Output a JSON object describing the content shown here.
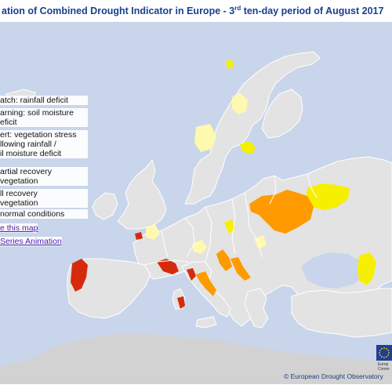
{
  "title": {
    "text_before_sup": "ation of Combined Drought Indicator in Europe - 3",
    "sup": "rd",
    "text_after_sup": " ten-day period of August 2017"
  },
  "legend": {
    "items": [
      {
        "line1": "atch: rainfall deficit",
        "line2": "",
        "line3": ""
      },
      {
        "line1": "arning: soil moisture",
        "line2": "eficit",
        "line3": ""
      },
      {
        "line1": "ert: vegetation stress",
        "line2": "llowing rainfall /",
        "line3": "il moisture deficit"
      },
      {
        "line1": "artial recovery",
        "line2": "vegetation",
        "line3": ""
      },
      {
        "line1": "ll recovery",
        "line2": "vegetation",
        "line3": ""
      },
      {
        "line1": "normal conditions",
        "line2": "",
        "line3": ""
      }
    ],
    "links": [
      "e this map",
      "Series Animation"
    ]
  },
  "copyright": "© European Drought Observatory",
  "eu_text": [
    "Europ",
    "Comm"
  ],
  "colors": {
    "sea": "#c9d5ea",
    "land": "#e3e3e3",
    "outside_land": "#d2d2d2",
    "border": "#ffffff",
    "watch": "#f6f000",
    "warning": "#ff9a00",
    "alert": "#d62a0c",
    "partial_recovery": "#fff9b0",
    "full_recovery": "#f4f8e0",
    "title": "#1a3f8f"
  },
  "icons": [
    "eu-flag-icon"
  ]
}
